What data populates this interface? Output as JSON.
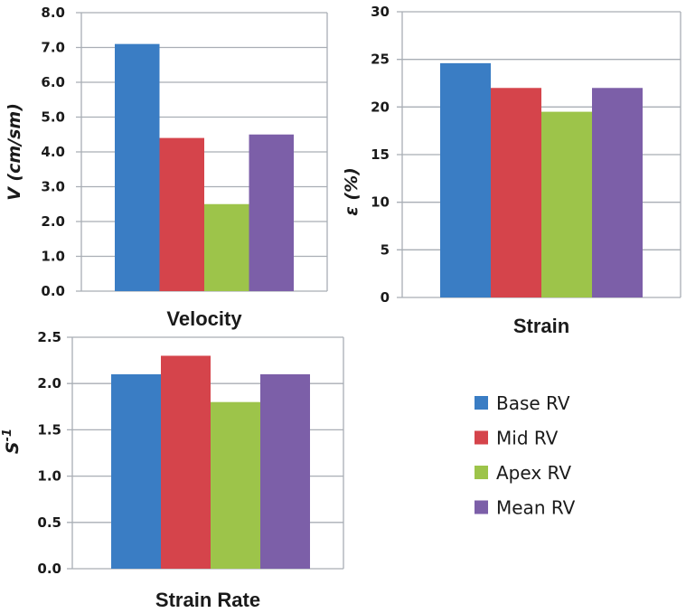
{
  "chart_data": [
    {
      "type": "bar",
      "id": "velocity",
      "title": "",
      "xlabel": "Velocity",
      "ylabel": "V (cm/sm)",
      "categories": [
        "Velocity"
      ],
      "series": [
        {
          "name": "Base RV",
          "values": [
            7.1
          ]
        },
        {
          "name": "Mid RV",
          "values": [
            4.4
          ]
        },
        {
          "name": "Apex RV",
          "values": [
            2.5
          ]
        },
        {
          "name": "Mean RV",
          "values": [
            4.5
          ]
        }
      ],
      "ylim": [
        0,
        8
      ],
      "yticks": [
        "0.0",
        "1.0",
        "2.0",
        "3.0",
        "4.0",
        "5.0",
        "6.0",
        "7.0",
        "8.0"
      ],
      "grid": true
    },
    {
      "type": "bar",
      "id": "strain",
      "title": "",
      "xlabel": "Strain",
      "ylabel": "ε (%)",
      "categories": [
        "Strain"
      ],
      "series": [
        {
          "name": "Base RV",
          "values": [
            24.6
          ]
        },
        {
          "name": "Mid RV",
          "values": [
            22.0
          ]
        },
        {
          "name": "Apex RV",
          "values": [
            19.5
          ]
        },
        {
          "name": "Mean RV",
          "values": [
            22.0
          ]
        }
      ],
      "ylim": [
        0,
        30
      ],
      "yticks": [
        "0",
        "5",
        "10",
        "15",
        "20",
        "25",
        "30"
      ],
      "grid": true
    },
    {
      "type": "bar",
      "id": "strain-rate",
      "title": "",
      "xlabel": "Strain Rate",
      "ylabel": "S",
      "ylabel_superscript": "-1",
      "categories": [
        "Strain Rate"
      ],
      "series": [
        {
          "name": "Base RV",
          "values": [
            2.1
          ]
        },
        {
          "name": "Mid RV",
          "values": [
            2.3
          ]
        },
        {
          "name": "Apex RV",
          "values": [
            1.8
          ]
        },
        {
          "name": "Mean RV",
          "values": [
            2.1
          ]
        }
      ],
      "ylim": [
        0,
        2.5
      ],
      "yticks": [
        "0.0",
        "0.5",
        "1.0",
        "1.5",
        "2.0",
        "2.5"
      ],
      "grid": true
    }
  ],
  "legend": {
    "placement": "bottom-right",
    "items": [
      {
        "label": "Base RV",
        "color": "#3a7dc4"
      },
      {
        "label": "Mid RV",
        "color": "#d5444b"
      },
      {
        "label": "Apex RV",
        "color": "#9dc44a"
      },
      {
        "label": "Mean RV",
        "color": "#7c5fa8"
      }
    ]
  },
  "colors": {
    "grid": "#a9aeb5",
    "axis": "#a9aeb5",
    "text": "#1a1a1a"
  }
}
